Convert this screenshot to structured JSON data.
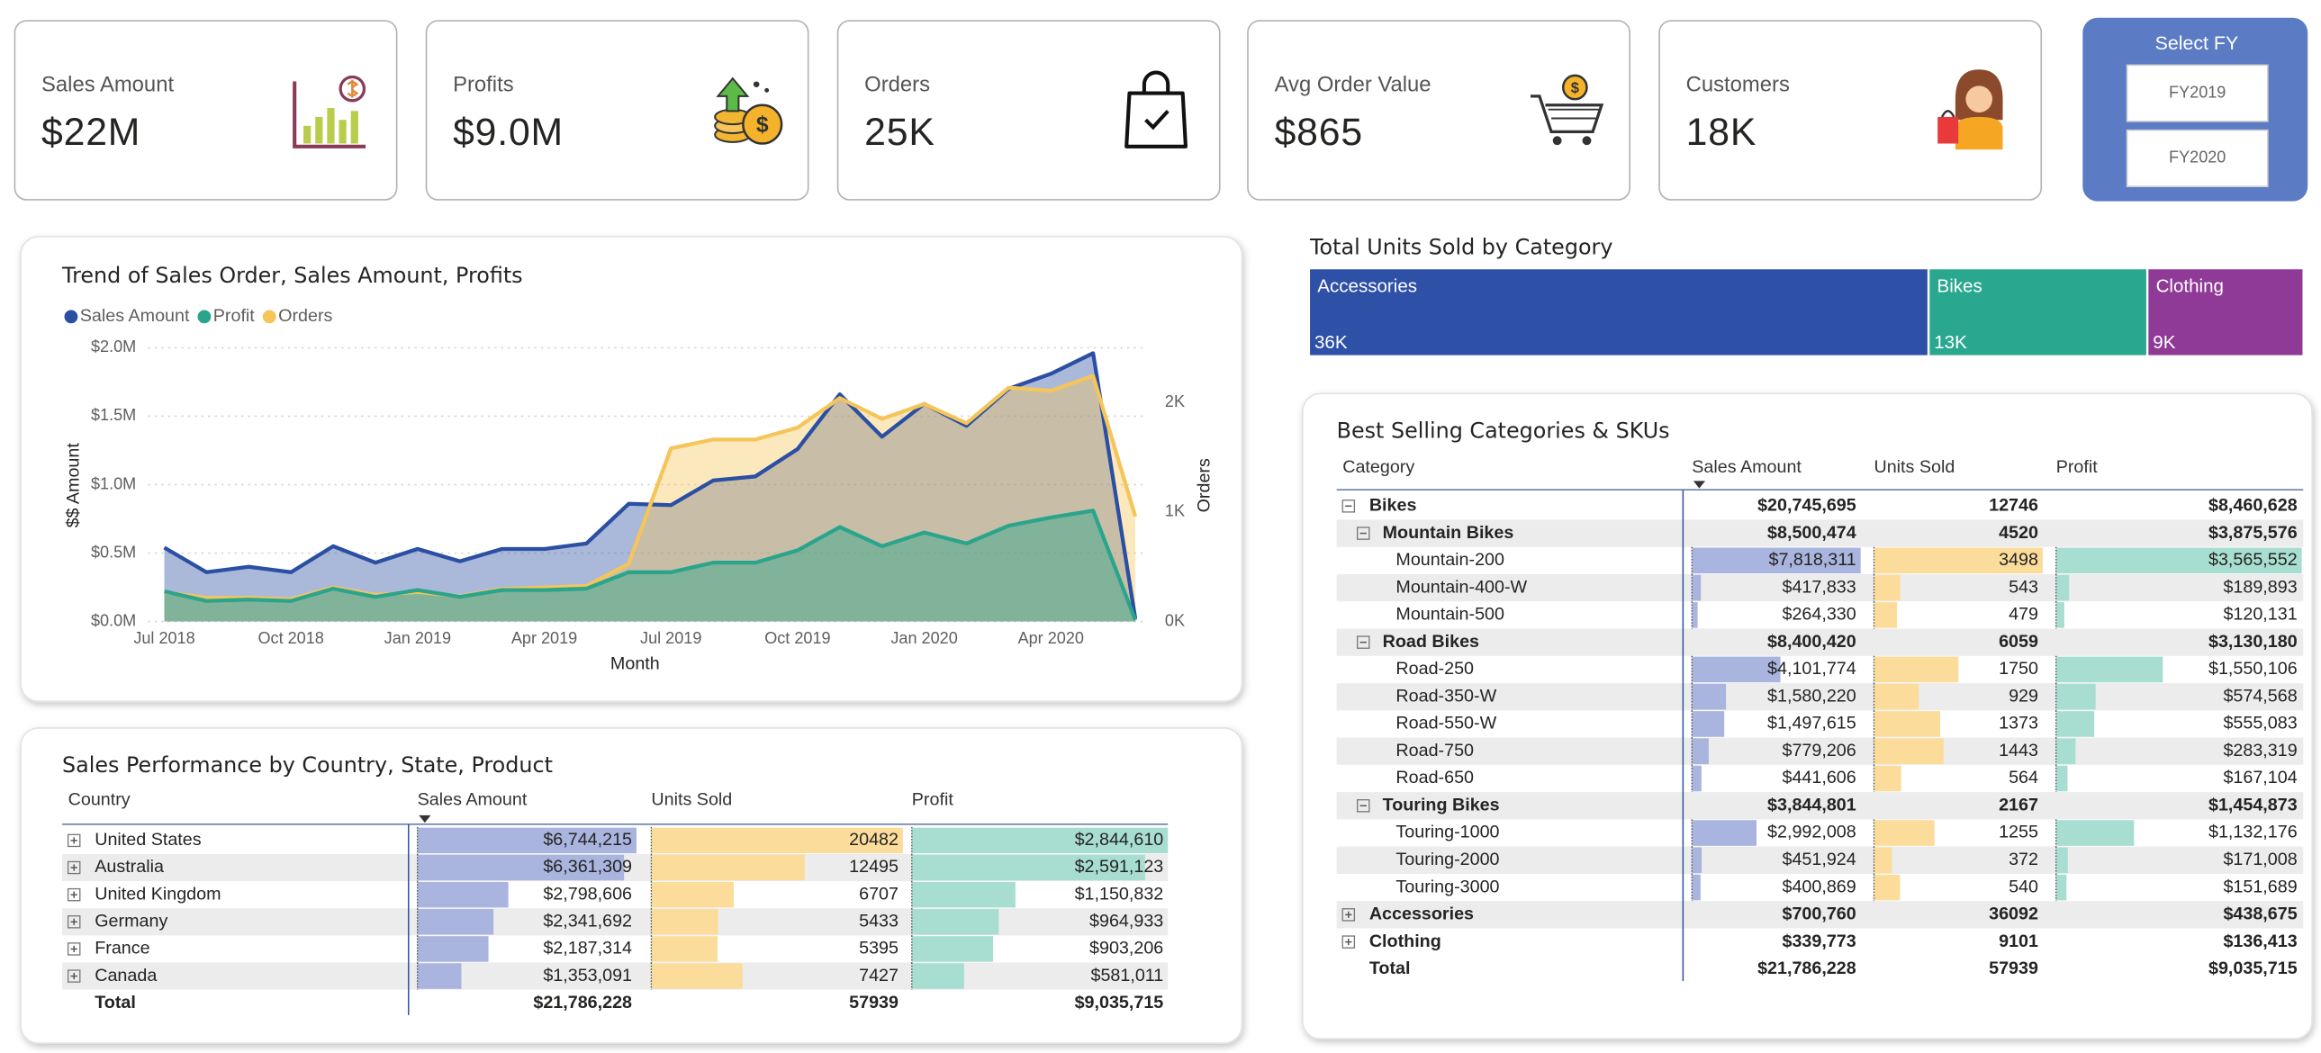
{
  "kpis": [
    {
      "label": "Sales Amount",
      "value": "$22M"
    },
    {
      "label": "Profits",
      "value": "$9.0M"
    },
    {
      "label": "Orders",
      "value": "25K"
    },
    {
      "label": "Avg Order Value",
      "value": "$865"
    },
    {
      "label": "Customers",
      "value": "18K"
    }
  ],
  "slicer": {
    "title": "Select FY",
    "options": [
      "FY2019",
      "FY2020"
    ]
  },
  "chart_data": [
    {
      "type": "line",
      "title": "Trend of Sales Order, Sales Amount, Profits",
      "x_label": "Month",
      "y_label": "$$ Amount",
      "y2_label": "Orders",
      "categories": [
        "Jul 2018",
        null,
        null,
        "Oct 2018",
        null,
        null,
        "Jan 2019",
        null,
        null,
        "Apr 2019",
        null,
        null,
        "Jul 2019",
        null,
        null,
        "Oct 2019",
        null,
        null,
        "Jan 2020",
        null,
        null,
        "Apr 2020",
        null,
        null
      ],
      "series": [
        {
          "name": "Sales Amount",
          "color": "#2a4fa3",
          "values": [
            0.54,
            0.36,
            0.4,
            0.36,
            0.55,
            0.43,
            0.53,
            0.44,
            0.53,
            0.53,
            0.57,
            0.86,
            0.85,
            1.03,
            1.06,
            1.26,
            1.66,
            1.35,
            1.59,
            1.43,
            1.7,
            1.81,
            1.96,
            0.02
          ]
        },
        {
          "name": "Profit",
          "color": "#2aa58b",
          "values": [
            0.22,
            0.15,
            0.16,
            0.15,
            0.24,
            0.18,
            0.23,
            0.18,
            0.23,
            0.23,
            0.24,
            0.36,
            0.36,
            0.43,
            0.43,
            0.52,
            0.69,
            0.55,
            0.65,
            0.57,
            0.7,
            0.76,
            0.81,
            0.01
          ]
        },
        {
          "name": "Orders",
          "color": "#f5c55a",
          "axis": "y2",
          "values": [
            270,
            216,
            216,
            203,
            311,
            243,
            270,
            230,
            297,
            311,
            324,
            527,
            1581,
            1662,
            1662,
            1770,
            2041,
            1851,
            1986,
            1811,
            2135,
            2108,
            2243,
            959
          ]
        }
      ],
      "ylim": [
        0,
        2.0
      ],
      "yticks": [
        {
          "value": 0,
          "label": "$0.0M"
        },
        {
          "value": 0.5,
          "label": "$0.5M"
        },
        {
          "value": 1.0,
          "label": "$1.0M"
        },
        {
          "value": 1.5,
          "label": "$1.5M"
        },
        {
          "value": 2.0,
          "label": "$2.0M"
        }
      ],
      "y2lim": [
        0,
        2500
      ],
      "y2ticks": [
        {
          "value": 0,
          "label": "0K"
        },
        {
          "value": 1000,
          "label": "1K"
        },
        {
          "value": 2000,
          "label": "2K"
        }
      ],
      "grid": true,
      "legend": "top-left"
    },
    {
      "type": "treemap",
      "title": "Total Units Sold by Category",
      "categories": [
        "Accessories",
        "Bikes",
        "Clothing"
      ],
      "values": [
        36092,
        12746,
        9101
      ],
      "value_labels": [
        "36K",
        "13K",
        "9K"
      ],
      "colors": [
        "#2e50a6",
        "#2aa88f",
        "#8e3a96"
      ]
    }
  ],
  "tables": [
    {
      "title": "Sales Performance by Country, State, Product",
      "columns": [
        "Country",
        "Sales Amount",
        "Units Sold",
        "Profit"
      ],
      "rows": [
        {
          "cells": [
            "United States",
            "$6,744,215",
            20482,
            "$2,844,610"
          ]
        },
        {
          "cells": [
            "Australia",
            "$6,361,309",
            12495,
            "$2,591,123"
          ]
        },
        {
          "cells": [
            "United Kingdom",
            "$2,798,606",
            6707,
            "$1,150,832"
          ]
        },
        {
          "cells": [
            "Germany",
            "$2,341,692",
            5433,
            "$964,933"
          ]
        },
        {
          "cells": [
            "France",
            "$2,187,314",
            5395,
            "$903,206"
          ]
        },
        {
          "cells": [
            "Canada",
            "$1,353,091",
            7427,
            "$581,011"
          ]
        }
      ],
      "total": [
        "Total",
        "$21,786,228",
        57939,
        "$9,035,715"
      ]
    },
    {
      "title": "Best Selling Categories & SKUs",
      "columns": [
        "Category",
        "Sales Amount",
        "Units Sold",
        "Profit"
      ],
      "rows": [
        {
          "cells": [
            "Bikes",
            "$20,745,695",
            12746,
            "$8,460,628"
          ],
          "children": [
            {
              "cells": [
                "Mountain Bikes",
                "$8,500,474",
                4520,
                "$3,875,576"
              ],
              "children": [
                {
                  "cells": [
                    "Mountain-200",
                    "$7,818,311",
                    3498,
                    "$3,565,552"
                  ]
                },
                {
                  "cells": [
                    "Mountain-400-W",
                    "$417,833",
                    543,
                    "$189,893"
                  ]
                },
                {
                  "cells": [
                    "Mountain-500",
                    "$264,330",
                    479,
                    "$120,131"
                  ]
                }
              ]
            },
            {
              "cells": [
                "Road Bikes",
                "$8,400,420",
                6059,
                "$3,130,180"
              ],
              "children": [
                {
                  "cells": [
                    "Road-250",
                    "$4,101,774",
                    1750,
                    "$1,550,106"
                  ]
                },
                {
                  "cells": [
                    "Road-350-W",
                    "$1,580,220",
                    929,
                    "$574,568"
                  ]
                },
                {
                  "cells": [
                    "Road-550-W",
                    "$1,497,615",
                    1373,
                    "$555,083"
                  ]
                },
                {
                  "cells": [
                    "Road-750",
                    "$779,206",
                    1443,
                    "$283,319"
                  ]
                },
                {
                  "cells": [
                    "Road-650",
                    "$441,606",
                    564,
                    "$167,104"
                  ]
                }
              ]
            },
            {
              "cells": [
                "Touring Bikes",
                "$3,844,801",
                2167,
                "$1,454,873"
              ],
              "children": [
                {
                  "cells": [
                    "Touring-1000",
                    "$2,992,008",
                    1255,
                    "$1,132,176"
                  ]
                },
                {
                  "cells": [
                    "Touring-2000",
                    "$451,924",
                    372,
                    "$171,008"
                  ]
                },
                {
                  "cells": [
                    "Touring-3000",
                    "$400,869",
                    540,
                    "$151,689"
                  ]
                }
              ]
            }
          ]
        },
        {
          "cells": [
            "Accessories",
            "$700,760",
            36092,
            "$438,675"
          ]
        },
        {
          "cells": [
            "Clothing",
            "$339,773",
            9101,
            "$136,413"
          ]
        }
      ],
      "total": [
        "Total",
        "$21,786,228",
        57939,
        "$9,035,715"
      ]
    }
  ]
}
